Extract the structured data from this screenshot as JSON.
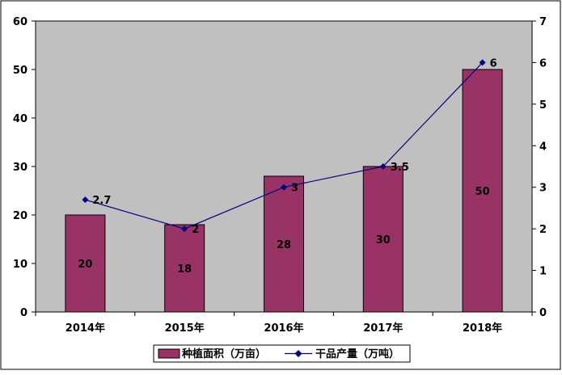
{
  "chart_data": {
    "type": "bar",
    "categories": [
      "2014年",
      "2015年",
      "2016年",
      "2017年",
      "2018年"
    ],
    "series": [
      {
        "name": "种植面积（万亩）",
        "type": "bar",
        "axis": "left",
        "color": "#993366",
        "values": [
          20,
          18,
          28,
          30,
          50
        ],
        "labels": [
          "20",
          "18",
          "28",
          "30",
          "50"
        ]
      },
      {
        "name": "干品产量（万吨）",
        "type": "line",
        "axis": "right",
        "color": "#000080",
        "values": [
          2.7,
          2,
          3,
          3.5,
          6
        ],
        "labels": [
          "2.7",
          "2",
          "3",
          "3.5",
          "6"
        ]
      }
    ],
    "left_axis": {
      "range": [
        0,
        60
      ],
      "ticks": [
        "0",
        "10",
        "20",
        "30",
        "40",
        "50",
        "60"
      ]
    },
    "right_axis": {
      "range": [
        0,
        7
      ],
      "ticks": [
        "0",
        "1",
        "2",
        "3",
        "4",
        "5",
        "6",
        "7"
      ]
    },
    "title": "",
    "xlabel": "",
    "ylabel": "",
    "grid": false,
    "plot_background": "#c0c0c0",
    "legend_position": "bottom"
  }
}
